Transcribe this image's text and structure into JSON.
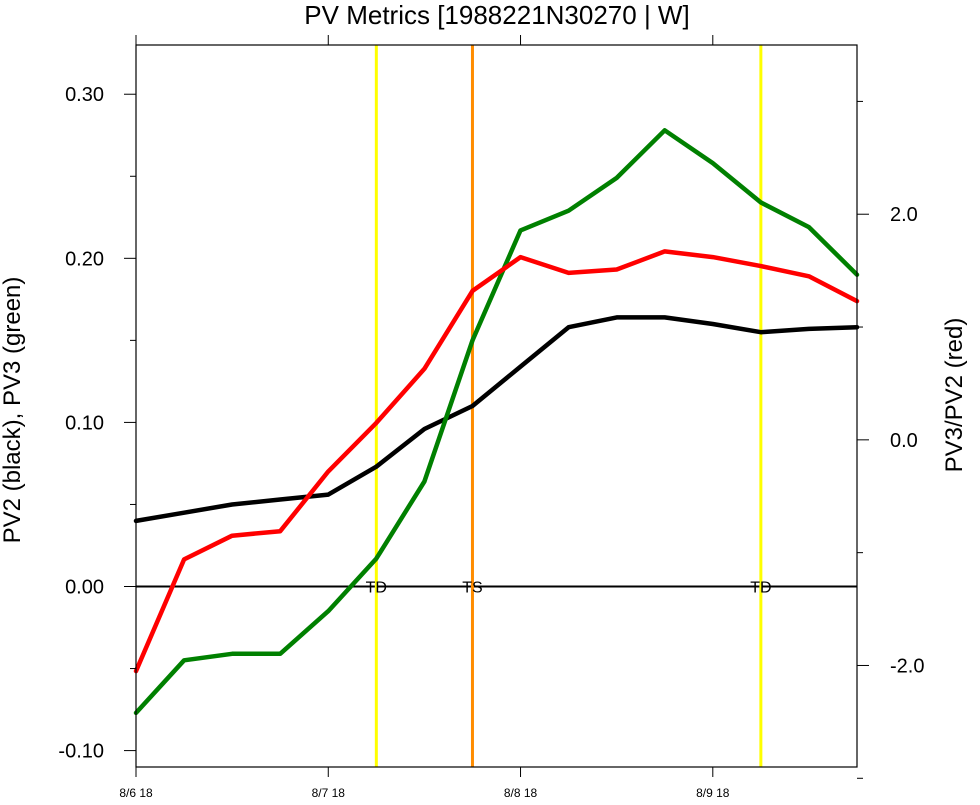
{
  "chart_data": {
    "type": "line",
    "title": "PV Metrics [1988221N30270 | W]",
    "ylabel_left": "PV2 (black), PV3 (green)",
    "ylabel_right": "PV3/PV2 (red)",
    "x_tick_labels": [
      "8/6 18",
      "8/7 18",
      "8/8 18",
      "8/9 18"
    ],
    "x_tick_values": [
      0,
      4,
      8,
      12
    ],
    "xlim": [
      0,
      15
    ],
    "ylim_left": [
      -0.11,
      0.33
    ],
    "left_tick_labels": [
      "0.30",
      "0.20",
      "0.10",
      "0.00",
      "-0.10"
    ],
    "left_tick_values": [
      0.3,
      0.2,
      0.1,
      0.0,
      -0.1
    ],
    "ylim_right": [
      -2.9,
      3.5
    ],
    "right_tick_labels": [
      "2.0",
      "0.0",
      "-2.0"
    ],
    "right_tick_values": [
      2.0,
      0.0,
      -2.0
    ],
    "zero_line": 0.0,
    "series": [
      {
        "axis": "left",
        "color": "#000000",
        "x": [
          0,
          1,
          2,
          3,
          4,
          5,
          6,
          7,
          8,
          9,
          10,
          11,
          12,
          13,
          14,
          15
        ],
        "values": [
          0.04,
          0.045,
          0.05,
          0.053,
          0.056,
          0.073,
          0.096,
          0.11,
          0.134,
          0.158,
          0.164,
          0.164,
          0.16,
          0.155,
          0.157,
          0.158
        ]
      },
      {
        "axis": "left",
        "color": "#008000",
        "x": [
          0,
          1,
          2,
          3,
          4,
          5,
          6,
          7,
          8,
          9,
          10,
          11,
          12,
          13,
          14,
          15
        ],
        "values": [
          -0.077,
          -0.045,
          -0.041,
          -0.041,
          -0.015,
          0.017,
          0.064,
          0.15,
          0.217,
          0.229,
          0.249,
          0.278,
          0.258,
          0.234,
          0.219,
          0.19
        ]
      },
      {
        "axis": "right",
        "color": "#ff0000",
        "x": [
          0,
          1,
          2,
          3,
          4,
          5,
          6,
          7,
          8,
          9,
          10,
          11,
          12,
          13,
          14,
          15
        ],
        "values": [
          -2.05,
          -1.06,
          -0.85,
          -0.81,
          -0.28,
          0.15,
          0.63,
          1.32,
          1.62,
          1.48,
          1.51,
          1.67,
          1.62,
          1.54,
          1.45,
          1.23
        ]
      }
    ],
    "events": [
      {
        "label": "TD",
        "x": 5.0,
        "color": "#ffff00"
      },
      {
        "label": "TS",
        "x": 7.0,
        "color": "#ff8c00"
      },
      {
        "label": "TD",
        "x": 13.0,
        "color": "#ffff00"
      }
    ]
  }
}
